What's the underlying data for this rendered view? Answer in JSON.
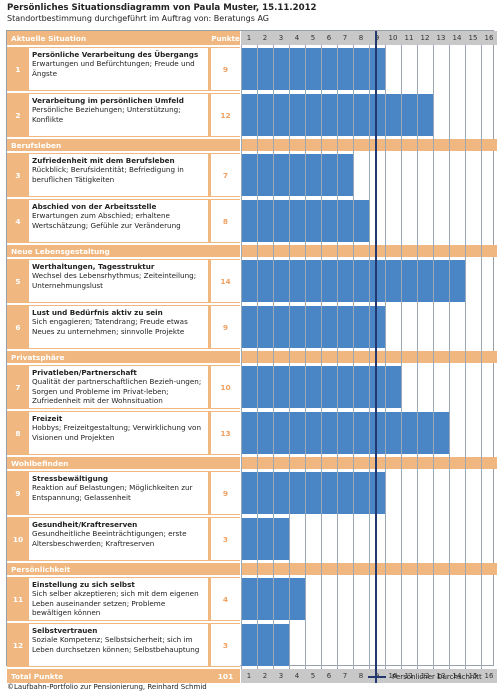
{
  "title": "Persönliches Situationsdiagramm von Paula Muster, 15.11.2012",
  "subtitle": "Standortbestimmung durchgeführt im Auftrag von: Beratungs AG",
  "header": {
    "section_first": "Aktuelle Situation",
    "points_label": "Punkte"
  },
  "chart_data": {
    "type": "bar",
    "orientation": "horizontal",
    "x_ticks": [
      "1",
      "2",
      "3",
      "4",
      "5",
      "6",
      "7",
      "8",
      "9",
      "10",
      "11",
      "12",
      "13",
      "14",
      "15",
      "16"
    ],
    "xlim": [
      0,
      16
    ],
    "average": 8.4,
    "sections": [
      {
        "name": "Aktuelle Situation",
        "rows": [
          {
            "num": "1",
            "title": "Persönliche Verarbeitung des Übergangs",
            "desc": "Erwartungen und Befürchtungen; Freude und Ängste",
            "points": "9",
            "value": 9
          },
          {
            "num": "2",
            "title": "Verarbeitung im persönlichen Umfeld",
            "desc": "Persönliche Beziehungen; Unterstützung; Konflikte",
            "points": "12",
            "value": 12
          }
        ]
      },
      {
        "name": "Berufsleben",
        "rows": [
          {
            "num": "3",
            "title": "Zufriedenheit mit dem Berufsleben",
            "desc": "Rückblick; Berufsidentität; Befriedigung in beruflichen Tätigkeiten",
            "points": "7",
            "value": 7
          },
          {
            "num": "4",
            "title": "Abschied von der Arbeitsstelle",
            "desc": "Erwartungen zum Abschied; erhaltene Wertschätzung; Gefühle zur Veränderung",
            "points": "8",
            "value": 8
          }
        ]
      },
      {
        "name": "Neue Lebensgestaltung",
        "rows": [
          {
            "num": "5",
            "title": "Werthaltungen, Tagesstruktur",
            "desc": "Wechsel des Lebensrhythmus; Zeiteinteilung; Unternehmungslust",
            "points": "14",
            "value": 14
          },
          {
            "num": "6",
            "title": "Lust und Bedürfnis aktiv zu sein",
            "desc": "Sich engagieren; Tatendrang; Freude etwas Neues zu unternehmen; sinnvolle Projekte",
            "points": "9",
            "value": 9
          }
        ]
      },
      {
        "name": "Privatsphäre",
        "rows": [
          {
            "num": "7",
            "title": "Privatleben/Partnerschaft",
            "desc": "Qualität der partnerschaftlichen Bezieh-ungen; Sorgen und Probleme im Privat-leben; Zufriedenheit mit der Wohnsituation",
            "points": "10",
            "value": 10
          },
          {
            "num": "8",
            "title": "Freizeit",
            "desc": "Hobbys; Freizeitgestaltung; Verwirklichung von Visionen und Projekten",
            "points": "13",
            "value": 13
          }
        ]
      },
      {
        "name": "Wohlbefinden",
        "rows": [
          {
            "num": "9",
            "title": "Stressbewältigung",
            "desc": "Reaktion auf Belastungen; Möglichkeiten zur Entspannung; Gelassenheit",
            "points": "9",
            "value": 9
          },
          {
            "num": "10",
            "title": "Gesundheit/Kraftreserven",
            "desc": "Gesundheitliche Beeinträchtigungen; erste Altersbeschwerden; Kraftreserven",
            "points": "3",
            "value": 3
          }
        ]
      },
      {
        "name": "Persönlichkeit",
        "rows": [
          {
            "num": "11",
            "title": "Einstellung zu sich selbst",
            "desc": "Sich selber akzeptieren; sich mit dem eigenen Leben auseinander setzen; Probleme bewältigen können",
            "points": "4",
            "value": 4
          },
          {
            "num": "12",
            "title": "Selbstvertrauen",
            "desc": "Soziale Kompetenz; Selbstsicherheit; sich im Leben durchsetzen können; Selbstbehauptung",
            "points": "3",
            "value": 3
          }
        ]
      }
    ],
    "total_label": "Total Punkte",
    "total_points": "101",
    "legend": "Persönlicher Durchschnitt",
    "colors": {
      "bar": "#4a86c6",
      "section": "#f0b880",
      "points": "#f0a060",
      "average_line": "#23386e",
      "axis_row": "#c8c8c8"
    }
  },
  "footer": "©Laufbahn-Portfolio zur Pensionierung, Reinhard Schmid"
}
